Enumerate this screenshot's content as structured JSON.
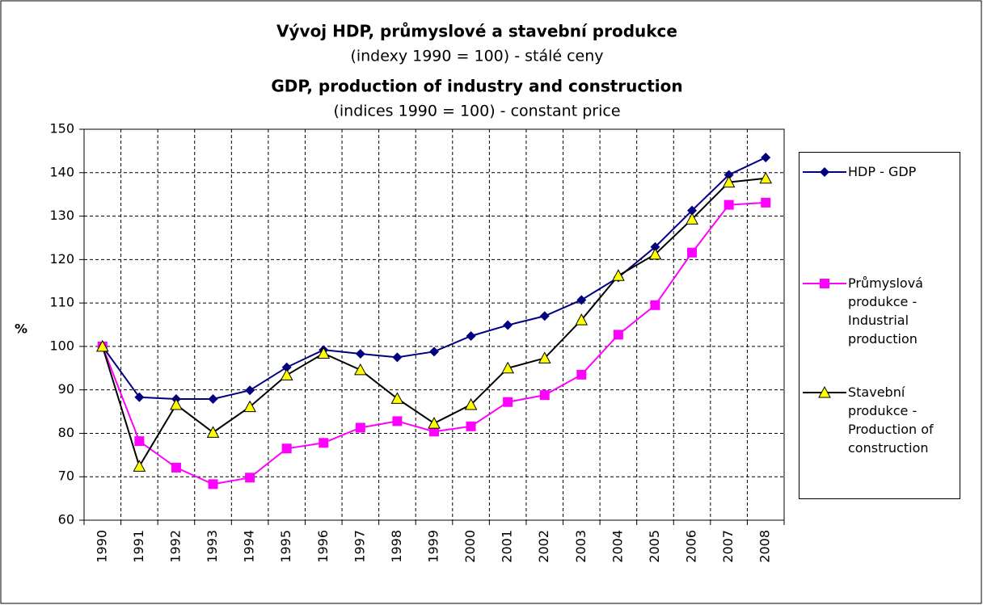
{
  "chart_data": {
    "type": "line",
    "title": "Vývoj HDP, průmyslové a stavební produkce",
    "subtitle": "(indexy 1990 = 100) - stálé ceny",
    "title_en": "GDP, production of industry and construction",
    "subtitle_en": "(indices 1990 = 100) - constant price",
    "y_label": "%",
    "categories": [
      "1990",
      "1991",
      "1992",
      "1993",
      "1994",
      "1995",
      "1996",
      "1997",
      "1998",
      "1999",
      "2000",
      "2001",
      "2002",
      "2003",
      "2004",
      "2005",
      "2006",
      "2007",
      "2008"
    ],
    "series": [
      {
        "name": "HDP - GDP",
        "color": "#000080",
        "marker": "diamond",
        "values": [
          100,
          88.3,
          87.9,
          87.9,
          89.9,
          95.2,
          99.2,
          98.3,
          97.5,
          98.8,
          102.4,
          104.9,
          107.0,
          110.7,
          115.9,
          122.9,
          131.3,
          139.5,
          143.5
        ]
      },
      {
        "name": "Průmyslová produkce - Industrial production",
        "color": "#ff00ff",
        "marker": "square",
        "values": [
          100,
          78.2,
          72.1,
          68.3,
          69.8,
          76.5,
          77.8,
          81.3,
          82.8,
          80.4,
          81.6,
          87.2,
          88.8,
          93.5,
          102.7,
          109.5,
          121.6,
          132.6,
          133.1
        ]
      },
      {
        "name": "Stavební produkce - Production of construction",
        "color": "#000000",
        "marker": "triangle",
        "values": [
          100,
          72.4,
          86.6,
          80.2,
          86.1,
          93.4,
          98.4,
          94.6,
          88.0,
          82.3,
          86.6,
          95.0,
          97.3,
          106.1,
          116.3,
          121.2,
          129.3,
          137.8,
          138.7
        ]
      }
    ],
    "ylim": [
      60,
      150
    ],
    "yticks": [
      60,
      70,
      80,
      90,
      100,
      110,
      120,
      130,
      140,
      150
    ],
    "grid": true
  }
}
